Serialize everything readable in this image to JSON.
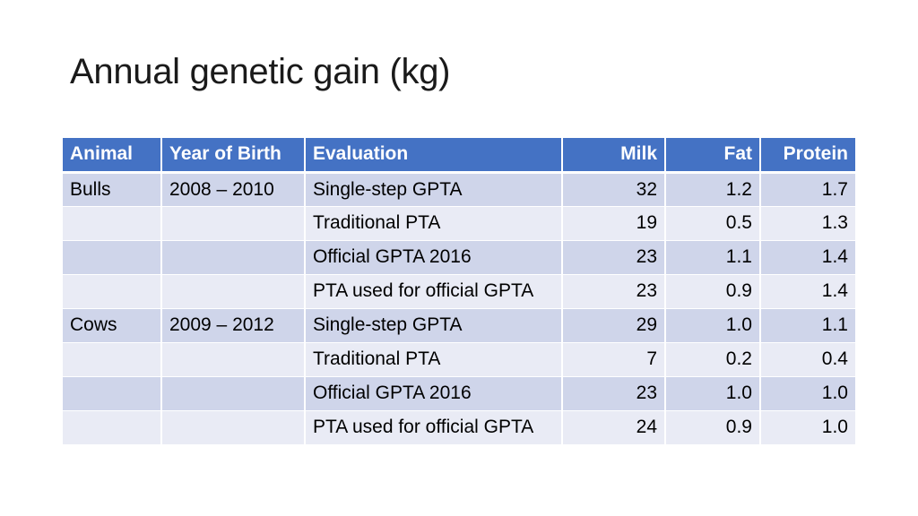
{
  "title": "Annual genetic gain (kg)",
  "colors": {
    "header_bg": "#4472c4",
    "row_odd_bg": "#cfd5ea",
    "row_even_bg": "#e9ebf5"
  },
  "table": {
    "headers": [
      "Animal",
      "Year of Birth",
      "Evaluation",
      "Milk",
      "Fat",
      "Protein"
    ],
    "rows": [
      [
        "Bulls",
        "2008 – 2010",
        "Single-step GPTA",
        "32",
        "1.2",
        "1.7"
      ],
      [
        "",
        "",
        "Traditional PTA",
        "19",
        "0.5",
        "1.3"
      ],
      [
        "",
        "",
        "Official GPTA 2016",
        "23",
        "1.1",
        "1.4"
      ],
      [
        "",
        "",
        "PTA used for official GPTA",
        "23",
        "0.9",
        "1.4"
      ],
      [
        "Cows",
        "2009 – 2012",
        "Single-step GPTA",
        "29",
        "1.0",
        "1.1"
      ],
      [
        "",
        "",
        "Traditional PTA",
        "7",
        "0.2",
        "0.4"
      ],
      [
        "",
        "",
        "Official GPTA 2016",
        "23",
        "1.0",
        "1.0"
      ],
      [
        "",
        "",
        "PTA used for official GPTA",
        "24",
        "0.9",
        "1.0"
      ]
    ]
  }
}
